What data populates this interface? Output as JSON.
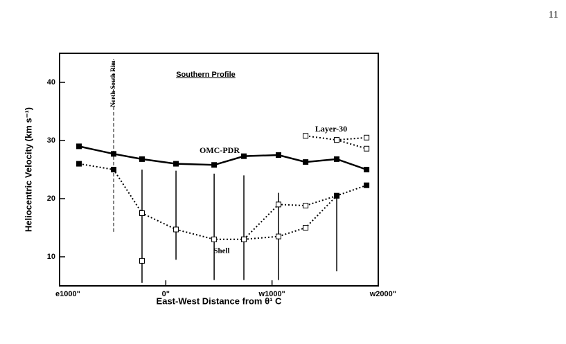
{
  "page_number": "11",
  "chart_data": {
    "type": "line",
    "title": "Southern Profile",
    "xlabel": "East-West Distance from θ¹ C",
    "ylabel": "Heliocentric Velocity (km s⁻¹)",
    "xlim": [
      -1000,
      2000
    ],
    "ylim": [
      5,
      45
    ],
    "xticks": [
      {
        "value": -1000,
        "label": "e1000\""
      },
      {
        "value": 0,
        "label": "0\""
      },
      {
        "value": 1000,
        "label": "w1000\""
      },
      {
        "value": 2000,
        "label": "w2000\""
      }
    ],
    "yticks": [
      10,
      20,
      30,
      40
    ],
    "color": "#000000",
    "series": [
      {
        "x": [
          -817,
          -491,
          -224,
          96,
          455,
          735,
          1061,
          1316,
          1609,
          1890
        ],
        "values": [
          29,
          27.7,
          26.8,
          26,
          25.8,
          27.3,
          27.5,
          26.3,
          26.8,
          25
        ],
        "style": "solid",
        "filled": [
          true,
          true,
          true,
          true,
          true,
          true,
          true,
          true,
          true,
          true
        ]
      },
      {
        "x": [
          -817,
          -491,
          -224,
          96,
          455,
          735,
          1061,
          1316,
          1609,
          1890
        ],
        "values": [
          26,
          25,
          17.5,
          14.7,
          13,
          13,
          13.5,
          15,
          20.5,
          22.3
        ],
        "style": "dotted",
        "filled": [
          true,
          true,
          false,
          false,
          false,
          false,
          false,
          false,
          true,
          true
        ]
      },
      {
        "x": [
          735,
          1061,
          1316,
          1609
        ],
        "values": [
          13,
          19,
          18.8,
          20.5
        ],
        "style": "dotted",
        "filled": [
          false,
          false,
          false,
          true
        ]
      },
      {
        "x": [
          1316,
          1609,
          1890
        ],
        "values": [
          30.8,
          30.1,
          30.5
        ],
        "style": "dotted",
        "filled": [
          false,
          false,
          false
        ]
      },
      {
        "x": [
          1609,
          1890
        ],
        "values": [
          30.1,
          28.6
        ],
        "style": "dotted",
        "filled": [
          false,
          false
        ]
      },
      {
        "x": [
          -224
        ],
        "values": [
          9.3
        ],
        "style": "none",
        "filled": [
          false
        ]
      }
    ],
    "error_bars": {
      "x": [
        -224,
        96,
        455,
        735,
        1061,
        1609
      ],
      "low": [
        5.5,
        9.5,
        6,
        6,
        6,
        7.5
      ],
      "high": [
        25,
        24.8,
        24.3,
        24,
        21,
        20.5
      ]
    },
    "rim": {
      "label": "North-South Rim",
      "x": -491,
      "low": 14.3,
      "high": 44
    },
    "annotations": [
      "OMC-PDR",
      "Shell",
      "Layer-30"
    ]
  }
}
